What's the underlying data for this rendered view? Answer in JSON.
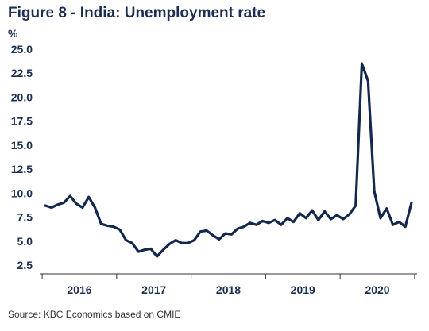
{
  "title": "Figure 8 - India: Unemployment rate",
  "unit_label": "%",
  "source": "Source: KBC Economics based on CMIE",
  "colors": {
    "line": "#13284d",
    "text": "#1c2f52",
    "axis": "#333333"
  },
  "chart_data": {
    "type": "line",
    "title": "Figure 8 - India: Unemployment rate",
    "xlabel": "",
    "ylabel": "%",
    "ylim": [
      2.5,
      25.0
    ],
    "y_ticks": [
      "2.5",
      "5.0",
      "7.5",
      "10.0",
      "12.5",
      "15.0",
      "17.5",
      "20.0",
      "22.5",
      "25.0"
    ],
    "x_tick_labels": [
      "2016",
      "2017",
      "2018",
      "2019",
      "2020"
    ],
    "grid": false,
    "legend": "none",
    "series": [
      {
        "x": [
          "2016-01",
          "2016-02",
          "2016-03",
          "2016-04",
          "2016-05",
          "2016-06",
          "2016-07",
          "2016-08",
          "2016-09",
          "2016-10",
          "2016-11",
          "2016-12",
          "2017-01",
          "2017-02",
          "2017-03",
          "2017-04",
          "2017-05",
          "2017-06",
          "2017-07",
          "2017-08",
          "2017-09",
          "2017-10",
          "2017-11",
          "2017-12",
          "2018-01",
          "2018-02",
          "2018-03",
          "2018-04",
          "2018-05",
          "2018-06",
          "2018-07",
          "2018-08",
          "2018-09",
          "2018-10",
          "2018-11",
          "2018-12",
          "2019-01",
          "2019-02",
          "2019-03",
          "2019-04",
          "2019-05",
          "2019-06",
          "2019-07",
          "2019-08",
          "2019-09",
          "2019-10",
          "2019-11",
          "2019-12",
          "2020-01",
          "2020-02",
          "2020-03",
          "2020-04",
          "2020-05",
          "2020-06",
          "2020-07",
          "2020-08",
          "2020-09",
          "2020-10",
          "2020-11",
          "2020-12"
        ],
        "values": [
          8.7,
          8.5,
          8.8,
          9.0,
          9.7,
          8.9,
          8.5,
          9.6,
          8.5,
          6.8,
          6.6,
          6.5,
          6.2,
          5.1,
          4.8,
          3.9,
          4.1,
          4.2,
          3.4,
          4.1,
          4.7,
          5.1,
          4.8,
          4.8,
          5.1,
          6.0,
          6.1,
          5.6,
          5.2,
          5.8,
          5.7,
          6.3,
          6.5,
          6.9,
          6.7,
          7.1,
          6.9,
          7.2,
          6.7,
          7.4,
          7.0,
          7.9,
          7.4,
          8.2,
          7.2,
          8.1,
          7.3,
          7.7,
          7.3,
          7.8,
          8.7,
          23.5,
          21.7,
          10.2,
          7.4,
          8.4,
          6.7,
          7.0,
          6.5,
          9.0
        ]
      }
    ]
  }
}
